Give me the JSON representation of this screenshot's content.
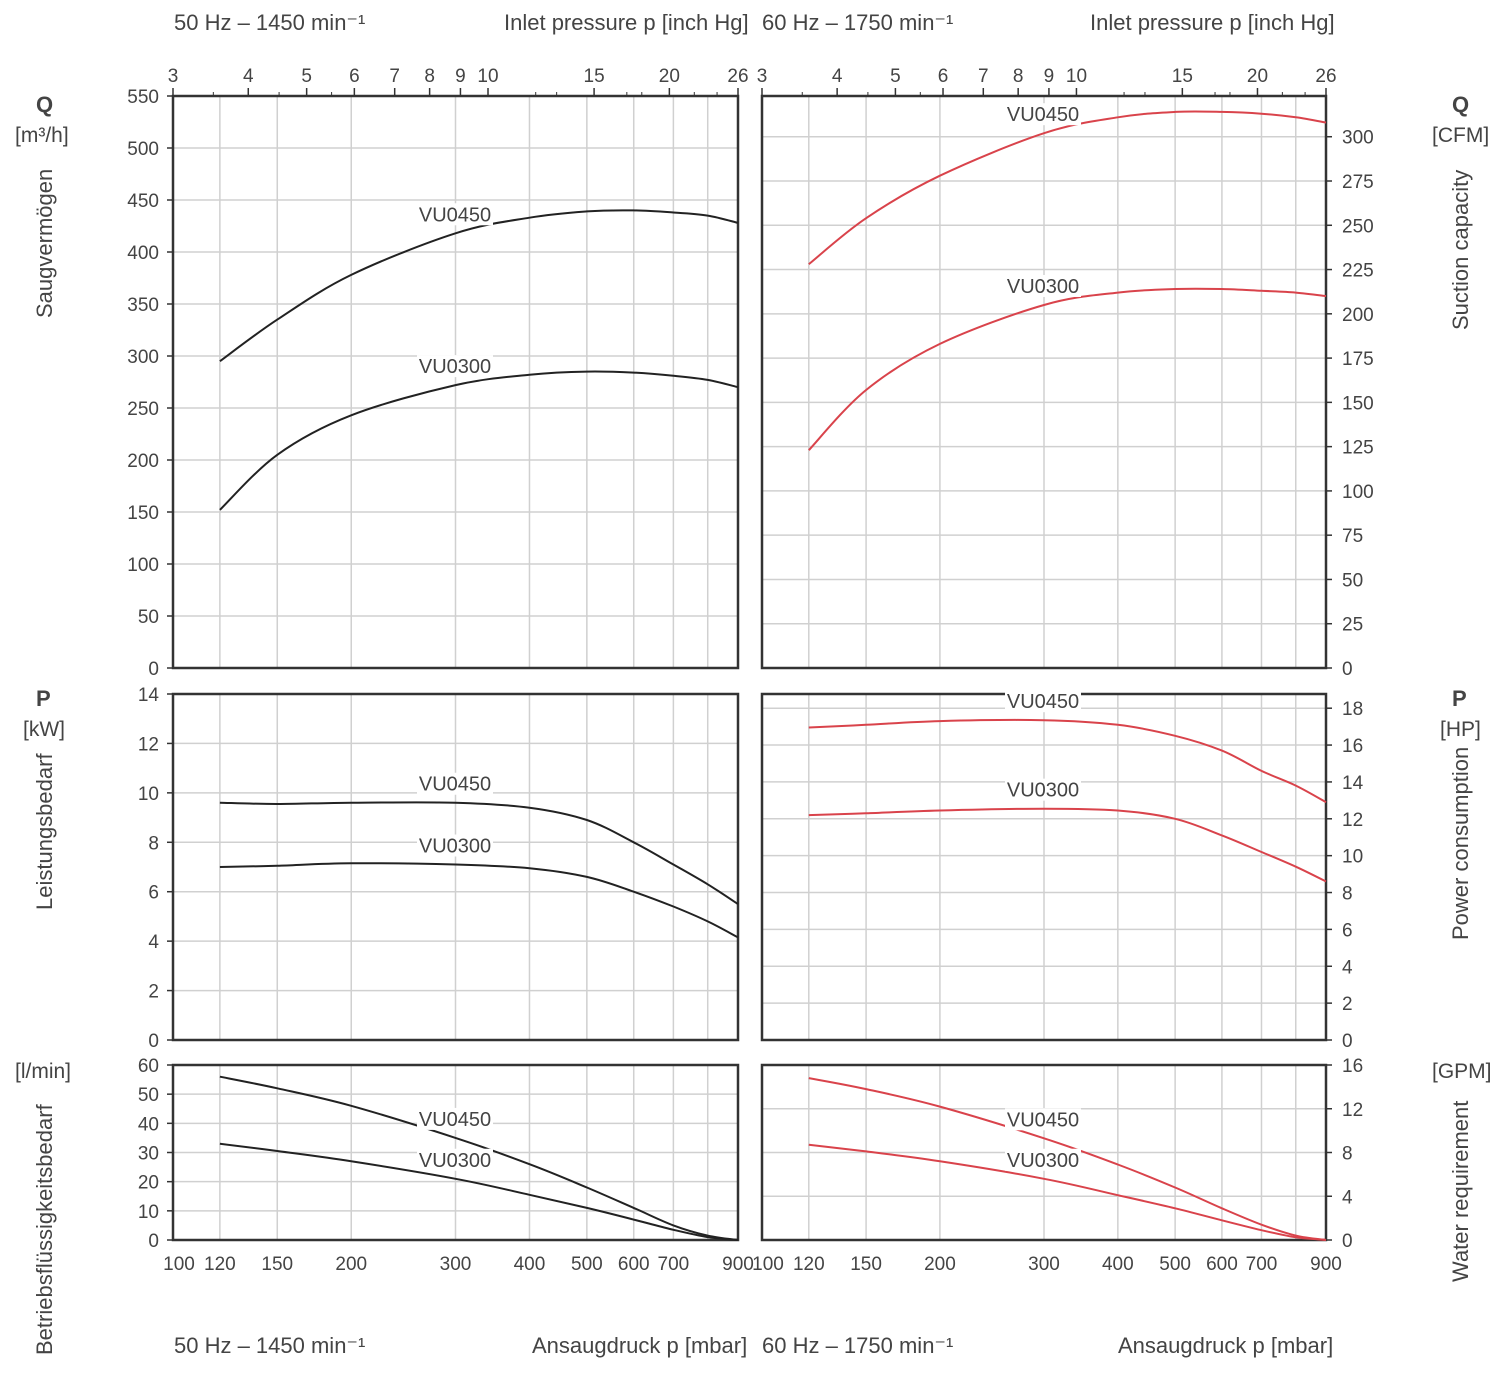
{
  "header": {
    "left_freq": "50 Hz – 1450 min⁻¹",
    "left_inlet": "Inlet pressure p [inch Hg]",
    "right_freq": "60 Hz – 1750 min⁻¹",
    "right_inlet": "Inlet pressure p [inch Hg]"
  },
  "footer": {
    "left_freq": "50 Hz – 1450 min⁻¹",
    "left_axis": "Ansaugdruck p [mbar]",
    "right_freq": "60 Hz – 1750 min⁻¹",
    "right_axis": "Ansaugdruck p [mbar]"
  },
  "left_axis_labels": {
    "q_symbol": "Q",
    "q_unit": "[m³/h]",
    "q_name": "Saugvermögen",
    "p_symbol": "P",
    "p_unit": "[kW]",
    "p_name": "Leistungsbedarf",
    "w_unit": "[l/min]",
    "w_name": "Betriebsflüssigkeitsbedarf"
  },
  "right_axis_labels": {
    "q_symbol": "Q",
    "q_unit": "[CFM]",
    "q_name": "Suction capacity",
    "p_symbol": "P",
    "p_unit": "[HP]",
    "p_name": "Power consumption",
    "w_unit": "[GPM]",
    "w_name": "Water requirement"
  },
  "colors": {
    "left_curve": "#222222",
    "right_curve": "#d9434b",
    "grid": "#d0d0d0",
    "frame": "#333333"
  },
  "chart_data": [
    {
      "type": "line",
      "panel": "suction-50hz",
      "x_scale": "log",
      "x_ticks": [
        100,
        120,
        150,
        200,
        300,
        400,
        500,
        600,
        700,
        900
      ],
      "x_ticks_inchhg": [
        3,
        4,
        5,
        6,
        7,
        8,
        9,
        10,
        15,
        20,
        26
      ],
      "ylim": [
        0,
        550
      ],
      "yticks": [
        0,
        50,
        100,
        150,
        200,
        250,
        300,
        350,
        400,
        450,
        500,
        550
      ],
      "series": [
        {
          "name": "VU0450",
          "x": [
            120,
            150,
            200,
            300,
            400,
            500,
            600,
            700,
            800,
            900
          ],
          "y": [
            295,
            335,
            378,
            418,
            433,
            439,
            440,
            438,
            435,
            428
          ]
        },
        {
          "name": "VU0300",
          "x": [
            120,
            150,
            200,
            300,
            400,
            500,
            600,
            700,
            800,
            900
          ],
          "y": [
            152,
            205,
            243,
            272,
            282,
            285,
            284,
            281,
            277,
            270
          ]
        }
      ]
    },
    {
      "type": "line",
      "panel": "power-50hz",
      "x_scale": "log",
      "ylim": [
        0,
        14
      ],
      "yticks": [
        0,
        2,
        4,
        6,
        8,
        10,
        12,
        14
      ],
      "series": [
        {
          "name": "VU0450",
          "x": [
            120,
            150,
            200,
            300,
            400,
            500,
            600,
            700,
            800,
            900
          ],
          "y": [
            9.6,
            9.55,
            9.6,
            9.6,
            9.4,
            8.9,
            8.0,
            7.1,
            6.3,
            5.5
          ]
        },
        {
          "name": "VU0300",
          "x": [
            120,
            150,
            200,
            300,
            400,
            500,
            600,
            700,
            800,
            900
          ],
          "y": [
            7.0,
            7.05,
            7.15,
            7.1,
            6.95,
            6.6,
            6.0,
            5.4,
            4.8,
            4.15
          ]
        }
      ]
    },
    {
      "type": "line",
      "panel": "water-50hz",
      "x_scale": "log",
      "ylim": [
        0,
        60
      ],
      "yticks": [
        0,
        10,
        20,
        30,
        40,
        50,
        60
      ],
      "series": [
        {
          "name": "VU0450",
          "x": [
            120,
            150,
            200,
            300,
            400,
            500,
            600,
            700,
            800,
            900
          ],
          "y": [
            56,
            52,
            46,
            35,
            26,
            18,
            11,
            5,
            1.5,
            0
          ]
        },
        {
          "name": "VU0300",
          "x": [
            120,
            150,
            200,
            300,
            400,
            500,
            600,
            700,
            800,
            900
          ],
          "y": [
            33,
            30.5,
            27,
            21,
            15.5,
            11,
            7,
            3.5,
            1,
            0
          ]
        }
      ]
    },
    {
      "type": "line",
      "panel": "suction-60hz",
      "x_scale": "log",
      "x_ticks": [
        100,
        120,
        150,
        200,
        300,
        400,
        500,
        600,
        700,
        900
      ],
      "x_ticks_inchhg": [
        3,
        4,
        5,
        6,
        7,
        8,
        9,
        10,
        15,
        20,
        26
      ],
      "ylim": [
        0,
        323
      ],
      "yticks": [
        0,
        25,
        50,
        75,
        100,
        125,
        150,
        175,
        200,
        225,
        250,
        275,
        300
      ],
      "series": [
        {
          "name": "VU0450",
          "x": [
            120,
            150,
            200,
            300,
            400,
            500,
            600,
            700,
            800,
            900
          ],
          "y": [
            228,
            254,
            278,
            302,
            311,
            314,
            314,
            313,
            311,
            308
          ]
        },
        {
          "name": "VU0300",
          "x": [
            120,
            150,
            200,
            300,
            400,
            500,
            600,
            700,
            800,
            900
          ],
          "y": [
            123,
            157,
            183,
            205,
            212,
            214,
            214,
            213,
            212,
            210
          ]
        }
      ]
    },
    {
      "type": "line",
      "panel": "power-60hz",
      "x_scale": "log",
      "ylim": [
        0,
        18.77
      ],
      "yticks": [
        0,
        2,
        4,
        6,
        8,
        10,
        12,
        14,
        16,
        18
      ],
      "series": [
        {
          "name": "VU0450",
          "x": [
            120,
            150,
            200,
            300,
            400,
            500,
            600,
            700,
            800,
            900
          ],
          "y": [
            16.95,
            17.1,
            17.3,
            17.35,
            17.1,
            16.5,
            15.7,
            14.6,
            13.8,
            12.9
          ]
        },
        {
          "name": "VU0300",
          "x": [
            120,
            150,
            200,
            300,
            400,
            500,
            600,
            700,
            800,
            900
          ],
          "y": [
            12.2,
            12.3,
            12.45,
            12.55,
            12.45,
            12.0,
            11.1,
            10.2,
            9.4,
            8.6
          ]
        }
      ]
    },
    {
      "type": "line",
      "panel": "water-60hz",
      "x_scale": "log",
      "ylim": [
        0,
        16
      ],
      "yticks": [
        0,
        4,
        8,
        12,
        16
      ],
      "series": [
        {
          "name": "VU0450",
          "x": [
            120,
            150,
            200,
            300,
            400,
            500,
            600,
            700,
            800,
            900
          ],
          "y": [
            14.8,
            13.8,
            12.2,
            9.3,
            6.9,
            4.8,
            2.9,
            1.4,
            0.4,
            0
          ]
        },
        {
          "name": "VU0300",
          "x": [
            120,
            150,
            200,
            300,
            400,
            500,
            600,
            700,
            800,
            900
          ],
          "y": [
            8.7,
            8.1,
            7.2,
            5.6,
            4.1,
            2.9,
            1.8,
            0.9,
            0.25,
            0
          ]
        }
      ]
    }
  ]
}
